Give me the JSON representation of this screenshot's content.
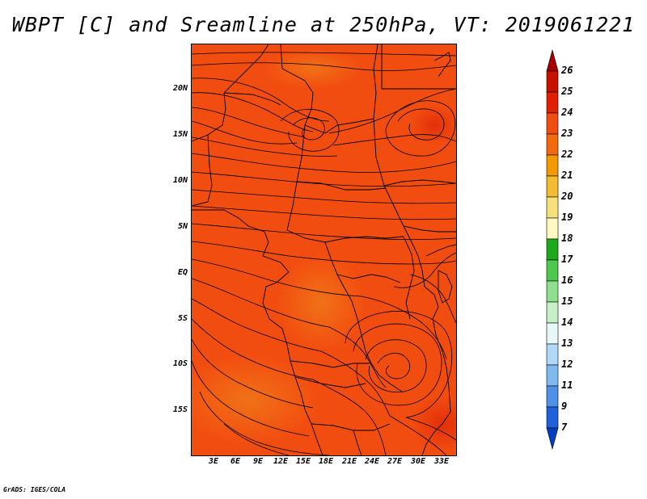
{
  "title": "WBPT [C] and Sreamline at 250hPa, VT: 2019061221",
  "footer": "GrADS: IGES/COLA",
  "lat_labels": [
    "20N",
    "15N",
    "10N",
    "5N",
    "EQ",
    "5S",
    "10S",
    "15S"
  ],
  "lon_labels": [
    "3E",
    "6E",
    "9E",
    "12E",
    "15E",
    "18E",
    "21E",
    "24E",
    "27E",
    "30E",
    "33E"
  ],
  "colorbar": {
    "labels": [
      "26",
      "25",
      "24",
      "23",
      "22",
      "21",
      "20",
      "19",
      "18",
      "17",
      "16",
      "15",
      "14",
      "13",
      "12",
      "11",
      "9",
      "7"
    ],
    "colors": [
      "#a80000",
      "#c81000",
      "#e02000",
      "#f24d10",
      "#f26a10",
      "#f29a00",
      "#f2bb30",
      "#f7e07a",
      "#fff8c0",
      "#1ea81e",
      "#50c850",
      "#8ee08e",
      "#c8f0c8",
      "#e8f8f8",
      "#b0d8f8",
      "#80b8f0",
      "#5090e8",
      "#2060d8",
      "#0040c0"
    ]
  }
}
